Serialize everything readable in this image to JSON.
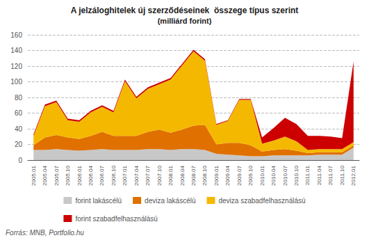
{
  "chart_data": {
    "type": "area",
    "title": "A jelzáloghitelek új szerződéseinek  összege típus szerint",
    "subtitle": "(milliárd forint)",
    "source": "Forrás: MNB, Portfolio.hu",
    "categories": [
      "2005.01",
      "2005.04",
      "2005.07",
      "2005.10",
      "2006.01",
      "2006.04",
      "2006.07",
      "2006.10",
      "2007.01",
      "2007.04",
      "2007.07",
      "2007.10",
      "2008.01",
      "2008.04",
      "2008.07",
      "2008.10",
      "2009.01",
      "2009.04",
      "2009.07",
      "2009.10",
      "2010.01",
      "2010.04",
      "2010.07",
      "2010.10",
      "2011.01",
      "2011.04",
      "2011.07",
      "2011.10",
      "2012.01"
    ],
    "series": [
      {
        "name": "forint lakáscélú",
        "color": "#C8C8C8",
        "values": [
          13,
          13,
          14,
          13,
          12,
          13,
          14,
          13,
          13,
          13,
          14,
          14,
          13,
          14,
          14,
          13,
          8,
          7,
          6,
          5,
          5,
          6,
          6,
          6,
          6,
          7,
          7,
          7,
          16
        ]
      },
      {
        "name": "deviza lakáscélú",
        "color": "#E07000",
        "values": [
          6,
          16,
          18,
          16,
          15,
          18,
          22,
          18,
          18,
          18,
          22,
          25,
          22,
          25,
          30,
          32,
          12,
          15,
          16,
          14,
          6,
          7,
          8,
          6,
          3,
          3,
          3,
          3,
          3
        ]
      },
      {
        "name": "deviza szabadfelhasználású",
        "color": "#F5B800",
        "values": [
          12,
          40,
          42,
          22,
          22,
          30,
          32,
          30,
          70,
          48,
          55,
          58,
          68,
          82,
          95,
          82,
          25,
          28,
          55,
          58,
          10,
          12,
          16,
          12,
          4,
          4,
          4,
          4,
          4
        ]
      },
      {
        "name": "forint szabadfelhasználású",
        "color": "#CC0000",
        "values": [
          2,
          2,
          2,
          2,
          2,
          2,
          2,
          2,
          2,
          2,
          2,
          2,
          2,
          2,
          2,
          2,
          1,
          1,
          1,
          1,
          8,
          16,
          24,
          22,
          18,
          17,
          16,
          14,
          103
        ]
      }
    ],
    "stacked": true,
    "ylim": [
      0,
      160
    ],
    "yticks": [
      0,
      20,
      40,
      60,
      80,
      100,
      120,
      140,
      160
    ],
    "grid": true,
    "legend": "bottom"
  }
}
